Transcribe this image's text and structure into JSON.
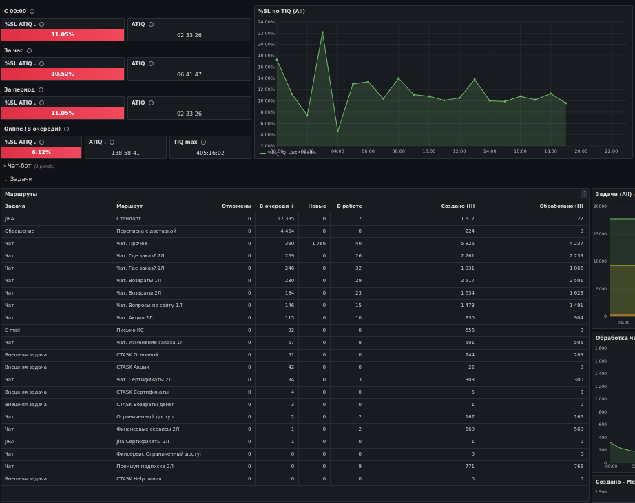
{
  "sections": {
    "since_midnight": "С 00:00",
    "per_hour": "За час",
    "per_period": "За период",
    "online": "Online (В очереди)",
    "chatbot": "Чат-бот",
    "chatbot_sub": "(3 panels)",
    "tasks": "Задачи"
  },
  "stats": {
    "sl_label": "%SL ATIQ .",
    "atiq_label": "ATIQ",
    "atiq_dot_label": "ATIQ .",
    "tiq_max_label": "TIQ max",
    "row1": {
      "sl": "11.05%",
      "atiq": "02:33:26"
    },
    "row2": {
      "sl": "10.52%",
      "atiq": "06:41:47"
    },
    "row3": {
      "sl": "11.05%",
      "atiq": "02:33:26"
    },
    "row4": {
      "sl": "6.12%",
      "atiq": "138:58:41",
      "tiq_max": "405:16:02"
    }
  },
  "chart_panel": {
    "title": "%SL по TIQ (All)",
    "legend_name": "%SL_TIQ",
    "legend_last": "Last *: 9.58%"
  },
  "chart_data": {
    "type": "area",
    "title": "%SL по TIQ (All)",
    "x_ticks": [
      "00:00",
      "02:00",
      "04:00",
      "06:00",
      "08:00",
      "10:00",
      "12:00",
      "14:00",
      "16:00",
      "18:00",
      "20:00",
      "22:00"
    ],
    "y_ticks": [
      "2.00%",
      "4.00%",
      "6.00%",
      "8.00%",
      "10.00%",
      "12.00%",
      "14.00%",
      "16.00%",
      "18.00%",
      "20.00%",
      "22.00%",
      "24.00%"
    ],
    "ylim": [
      2,
      24
    ],
    "xlim": [
      0,
      23
    ],
    "series": [
      {
        "name": "%SL_TIQ",
        "color": "#73bf69",
        "x": [
          0,
          1,
          2,
          3,
          4,
          5,
          6,
          7,
          8,
          9,
          10,
          11,
          12,
          13,
          14,
          15,
          16,
          17,
          18,
          19
        ],
        "y": [
          17.3,
          11.2,
          7.4,
          22.2,
          4.6,
          13.0,
          13.4,
          10.4,
          14.0,
          11.1,
          10.8,
          10.1,
          10.5,
          13.8,
          10.0,
          9.9,
          10.8,
          10.2,
          11.3,
          9.6
        ]
      }
    ]
  },
  "routes_panel": {
    "title": "Маршруты"
  },
  "table": {
    "headers": [
      "Задача",
      "Маршрут",
      "Отложены",
      "В очереди ↓",
      "Новые",
      "В работе",
      "Создано (Н)",
      "Обработано (Н)"
    ],
    "rows": [
      [
        "JIRA",
        "Стандарт",
        "0",
        "12 335",
        "0",
        "7",
        "1 517",
        "22"
      ],
      [
        "Обращение",
        "Переписка с доставкой",
        "0",
        "4 454",
        "0",
        "0",
        "224",
        "0"
      ],
      [
        "Чат",
        "Чат. Прочее",
        "0",
        "390",
        "1 766",
        "40",
        "5 826",
        "4 237"
      ],
      [
        "Чат",
        "Чат. Где заказ? 2Л",
        "0",
        "269",
        "0",
        "26",
        "2 261",
        "2 239"
      ],
      [
        "Чат",
        "Чат. Где заказ? 1Л",
        "0",
        "246",
        "0",
        "32",
        "1 931",
        "1 866"
      ],
      [
        "Чат",
        "Чат. Возвраты 1Л",
        "0",
        "230",
        "0",
        "29",
        "2 517",
        "2 501"
      ],
      [
        "Чат",
        "Чат. Возвраты 2Л",
        "0",
        "184",
        "0",
        "23",
        "1 634",
        "1 623"
      ],
      [
        "Чат",
        "Чат. Вопросы по сайту 1Л",
        "0",
        "146",
        "0",
        "15",
        "1 473",
        "1 491"
      ],
      [
        "Чат",
        "Чат. Акции 2Л",
        "0",
        "115",
        "0",
        "10",
        "930",
        "904"
      ],
      [
        "E-mail",
        "Письмо КС",
        "0",
        "92",
        "0",
        "0",
        "656",
        "0"
      ],
      [
        "Чат",
        "Чат. Изменение заказа 1Л",
        "0",
        "57",
        "0",
        "8",
        "501",
        "506"
      ],
      [
        "Внешняя задача",
        "CTASK Основной",
        "0",
        "51",
        "0",
        "0",
        "244",
        "209"
      ],
      [
        "Внешняя задача",
        "CTASK Акции",
        "0",
        "42",
        "0",
        "0",
        "22",
        "0"
      ],
      [
        "Чат",
        "Чат. Сертификаты 2Л",
        "0",
        "34",
        "0",
        "3",
        "308",
        "300"
      ],
      [
        "Внешняя задача",
        "CTASK Сертификаты",
        "0",
        "4",
        "0",
        "0",
        "5",
        "0"
      ],
      [
        "Внешняя задача",
        "CTASK Возвраты денег",
        "0",
        "3",
        "0",
        "0",
        "1",
        "0"
      ],
      [
        "Чат",
        "Ограниченный доступ",
        "0",
        "2",
        "0",
        "2",
        "167",
        "166"
      ],
      [
        "Чат",
        "Финансовые сервисы 2Л",
        "0",
        "1",
        "0",
        "2",
        "560",
        "560"
      ],
      [
        "JIRA",
        "Jira Сертификаты 2Л",
        "0",
        "1",
        "0",
        "0",
        "1",
        "0"
      ],
      [
        "Чат",
        "Финсервис.Ограниченный доступ",
        "0",
        "0",
        "0",
        "0",
        "0",
        "0"
      ],
      [
        "Чат",
        "Премиум подписка 2Л",
        "0",
        "0",
        "0",
        "9",
        "771",
        "766"
      ],
      [
        "Внешняя задача",
        "CTASK Help линия",
        "0",
        "0",
        "0",
        "0",
        "0",
        "0"
      ]
    ]
  },
  "side_panels": {
    "tasks_all": {
      "title": "Задачи (All)",
      "y_ticks": [
        "20000",
        "15000",
        "10000",
        "5000",
        "0"
      ],
      "x_tick": "01:00"
    },
    "chat_processing": {
      "title": "Обработка чатов",
      "y_ticks": [
        "1 800",
        "1 600",
        "1 400",
        "1 200",
        "1 000",
        "800",
        "600",
        "400",
        "200",
        "0"
      ],
      "x_ticks": [
        "00:00",
        "02"
      ]
    },
    "created_median": {
      "title": "Создано - Медиа",
      "y_tick": "2 500"
    }
  },
  "colors": {
    "accent_red": "#e02f44",
    "series_green": "#73bf69",
    "series_yellow": "#fade2a",
    "series_orange": "#ff9830"
  }
}
